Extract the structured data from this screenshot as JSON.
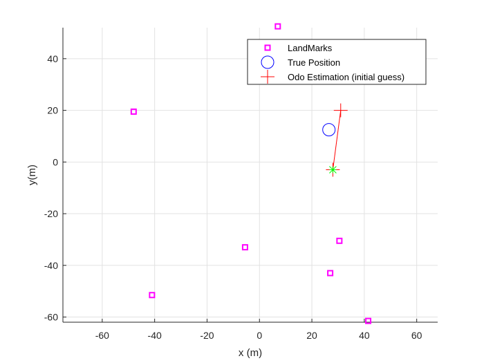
{
  "chart_data": {
    "type": "scatter",
    "xlabel": "x (m)",
    "ylabel": "y(m)",
    "xlim": [
      -75,
      68
    ],
    "ylim": [
      -62,
      52
    ],
    "xticks": [
      -60,
      -40,
      -20,
      0,
      20,
      40,
      60
    ],
    "yticks": [
      -60,
      -40,
      -20,
      0,
      20,
      40
    ],
    "grid": true,
    "legend_position": "top-right",
    "series": [
      {
        "name": "LandMarks",
        "marker": "square",
        "color": "#ff00ff",
        "x": [
          7,
          -48,
          -5.5,
          30.5,
          27,
          -41,
          41.5
        ],
        "y": [
          52.5,
          19.5,
          -33,
          -30.5,
          -43,
          -51.5,
          -61.5
        ]
      },
      {
        "name": "True Position",
        "marker": "circle",
        "color": "#0000ff",
        "x": [
          26.5
        ],
        "y": [
          12.5
        ]
      },
      {
        "name": "Odo Estimation (initial guess)",
        "marker": "plus",
        "color": "#ff0000",
        "x": [
          31,
          28
        ],
        "y": [
          20,
          -3
        ]
      }
    ],
    "extras": [
      {
        "marker": "star",
        "color": "#00ff00",
        "x": 28,
        "y": -3
      }
    ]
  }
}
